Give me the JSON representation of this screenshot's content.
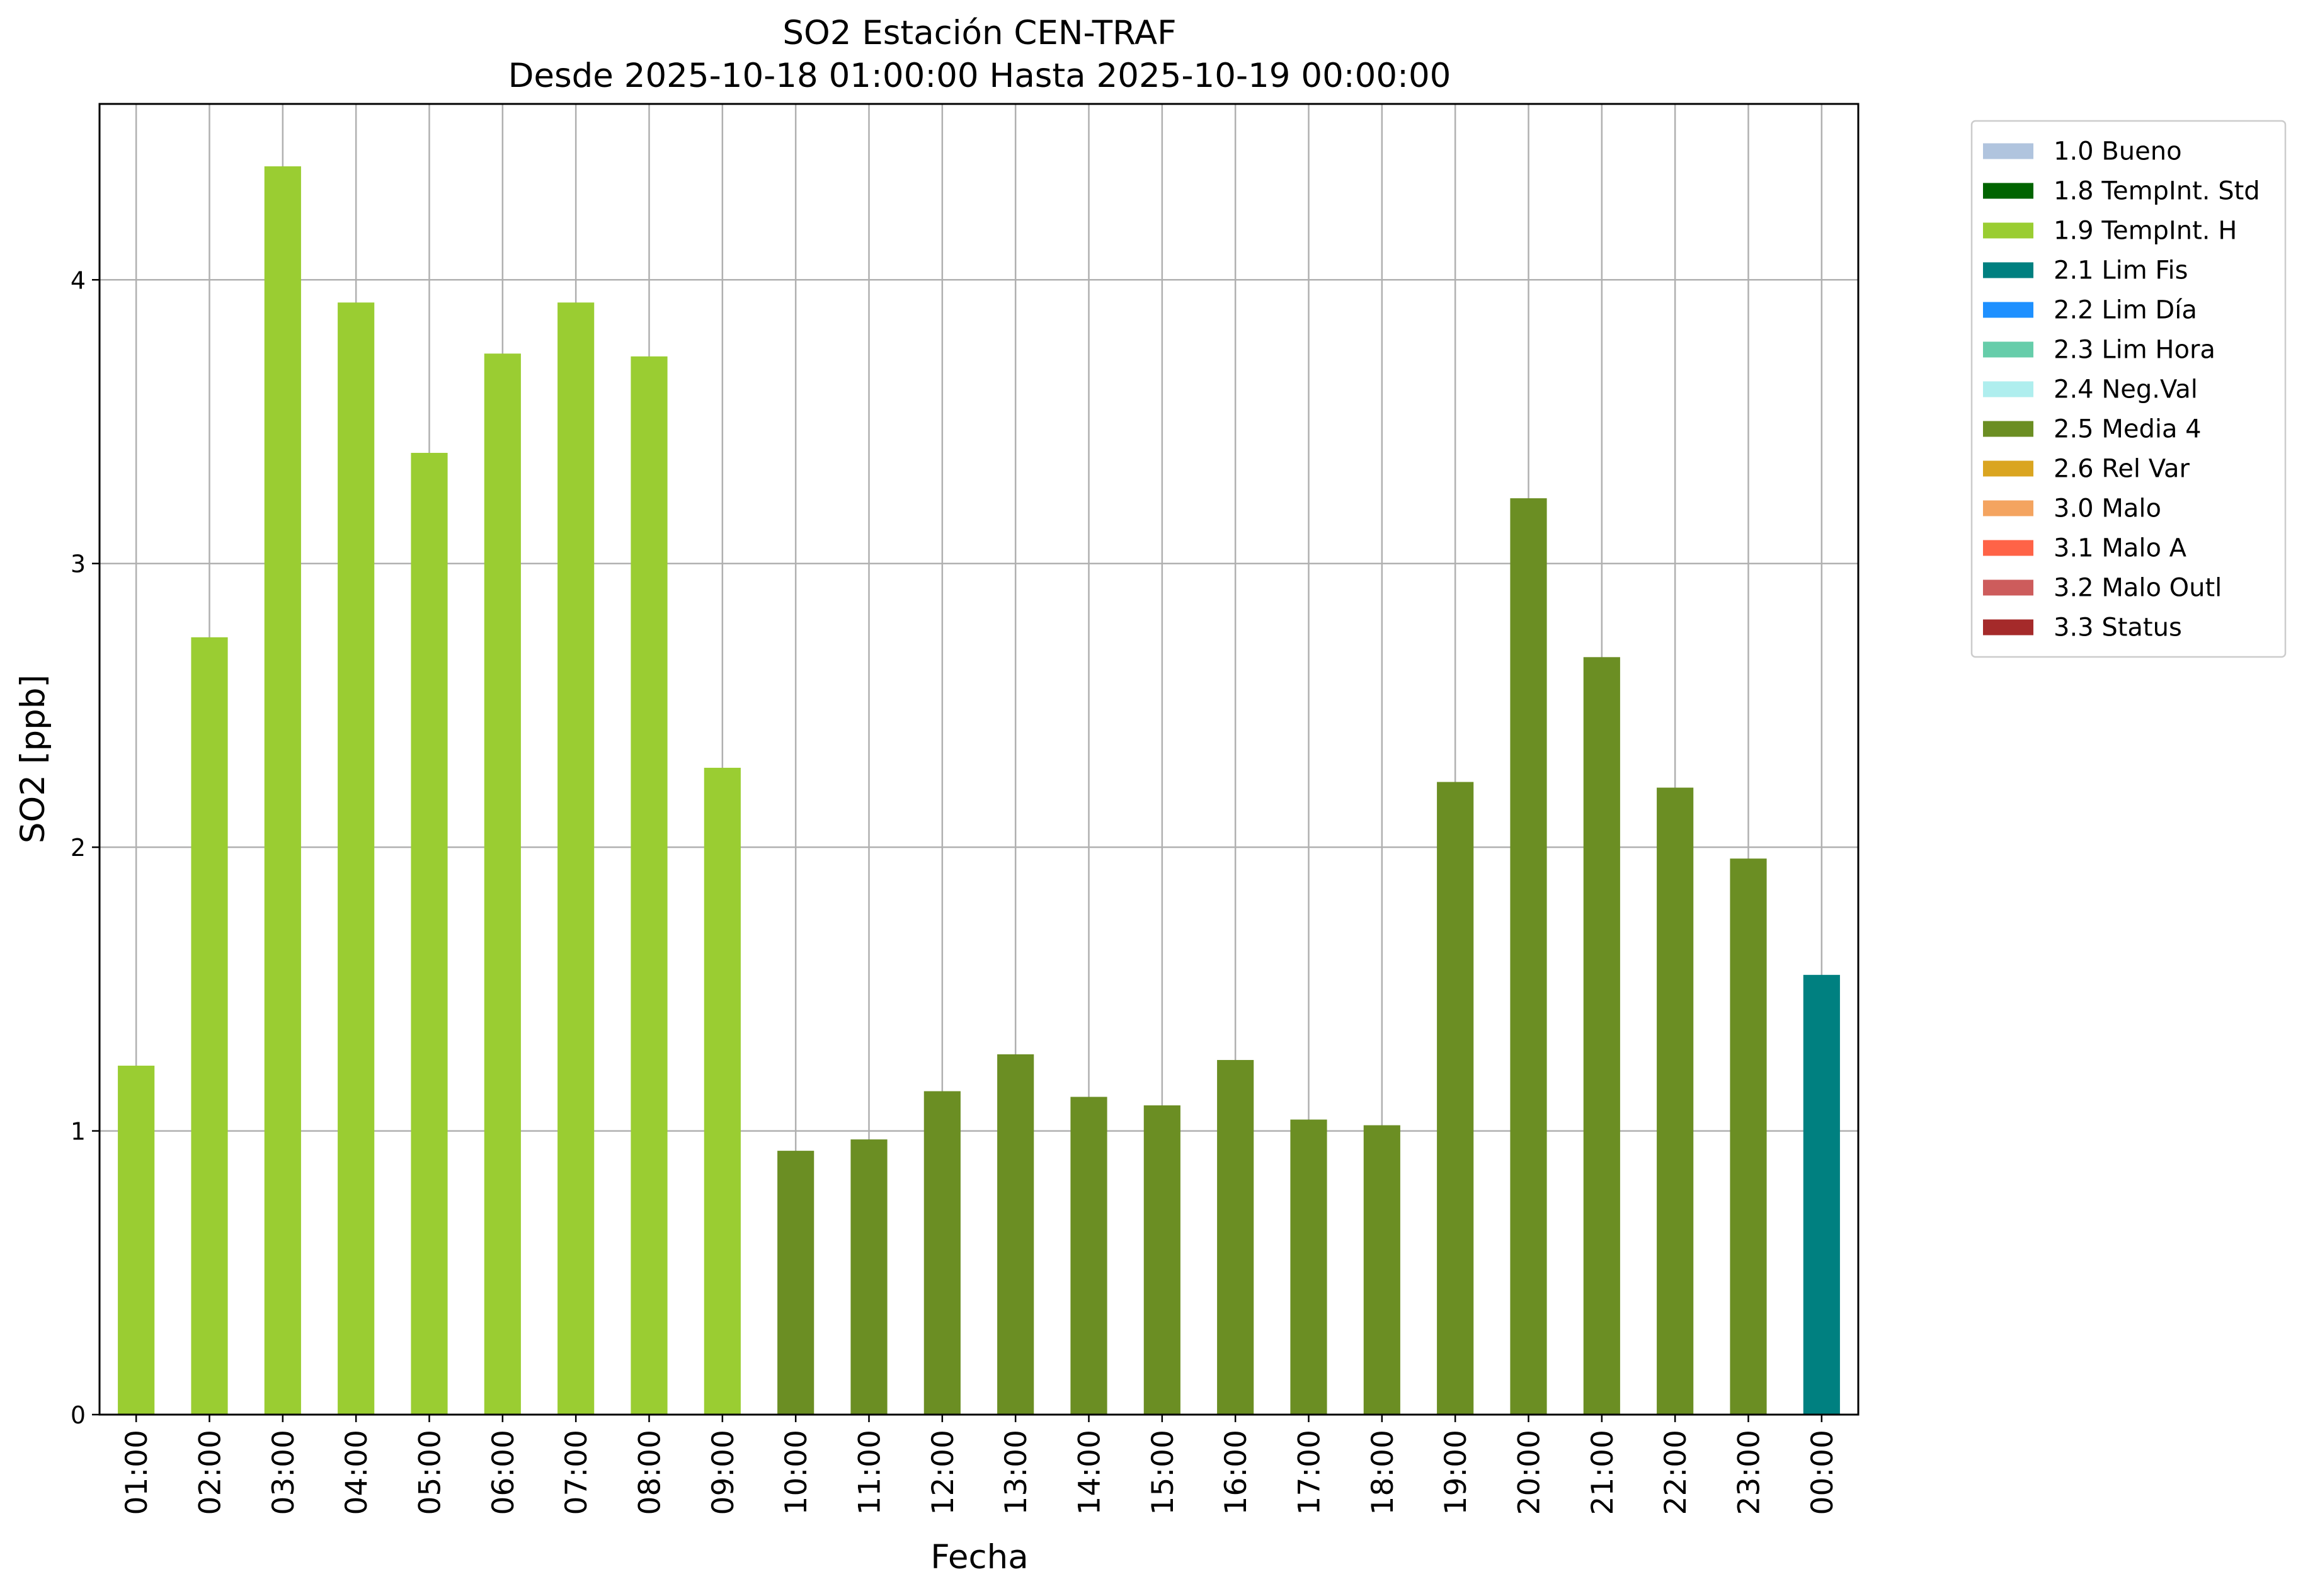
{
  "chart_data": {
    "type": "bar",
    "title_line1": "SO2 Estación CEN-TRAF",
    "title_line2": "Desde 2025-10-18 01:00:00 Hasta 2025-10-19 00:00:00",
    "xlabel": "Fecha",
    "ylabel": "SO2 [ppb]",
    "ylim": [
      0,
      4.62
    ],
    "yticks": [
      0,
      1,
      2,
      3,
      4
    ],
    "grid": true,
    "legend_position": "outside-right-top",
    "categories": [
      "01:00",
      "02:00",
      "03:00",
      "04:00",
      "05:00",
      "06:00",
      "07:00",
      "08:00",
      "09:00",
      "10:00",
      "11:00",
      "12:00",
      "13:00",
      "14:00",
      "15:00",
      "16:00",
      "17:00",
      "18:00",
      "19:00",
      "20:00",
      "21:00",
      "22:00",
      "23:00",
      "00:00"
    ],
    "values": [
      1.23,
      2.74,
      4.4,
      3.92,
      3.39,
      3.74,
      3.92,
      3.73,
      2.28,
      0.93,
      0.97,
      1.14,
      1.27,
      1.12,
      1.09,
      1.25,
      1.04,
      1.02,
      2.23,
      3.23,
      2.67,
      2.21,
      1.96,
      1.55
    ],
    "flags": [
      "1.9 TempInt. H",
      "1.9 TempInt. H",
      "1.9 TempInt. H",
      "1.9 TempInt. H",
      "1.9 TempInt. H",
      "1.9 TempInt. H",
      "1.9 TempInt. H",
      "1.9 TempInt. H",
      "1.9 TempInt. H",
      "2.5 Media 4",
      "2.5 Media 4",
      "2.5 Media 4",
      "2.5 Media 4",
      "2.5 Media 4",
      "2.5 Media 4",
      "2.5 Media 4",
      "2.5 Media 4",
      "2.5 Media 4",
      "2.5 Media 4",
      "2.5 Media 4",
      "2.5 Media 4",
      "2.5 Media 4",
      "2.5 Media 4",
      "2.1 Lim Fis"
    ],
    "legend": [
      {
        "label": "1.0 Bueno",
        "color": "#b0c4de"
      },
      {
        "label": "1.8 TempInt. Std",
        "color": "#006400"
      },
      {
        "label": "1.9 TempInt. H",
        "color": "#9acd32"
      },
      {
        "label": "2.1 Lim Fis",
        "color": "#008080"
      },
      {
        "label": "2.2 Lim Día",
        "color": "#1e90ff"
      },
      {
        "label": "2.3 Lim Hora",
        "color": "#66cdaa"
      },
      {
        "label": "2.4 Neg.Val",
        "color": "#afeeee"
      },
      {
        "label": "2.5 Media 4",
        "color": "#6b8e23"
      },
      {
        "label": "2.6 Rel Var",
        "color": "#daa520"
      },
      {
        "label": "3.0 Malo",
        "color": "#f4a460"
      },
      {
        "label": "3.1 Malo A",
        "color": "#ff6347"
      },
      {
        "label": "3.2 Malo Outl",
        "color": "#cd5c5c"
      },
      {
        "label": "3.3 Status",
        "color": "#a52a2a"
      }
    ]
  }
}
